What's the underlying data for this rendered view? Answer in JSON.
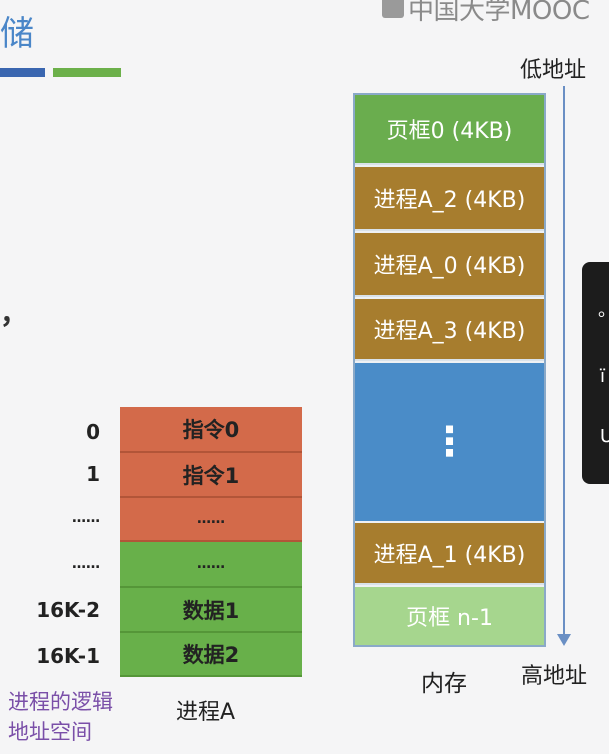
{
  "header": {
    "title_fragment": "储",
    "watermark": "中国大学MOOC",
    "comma": "，"
  },
  "logical_space": {
    "rows": [
      {
        "address": "0",
        "content": "指令0",
        "kind": "instruction"
      },
      {
        "address": "1",
        "content": "指令1",
        "kind": "instruction"
      },
      {
        "address": "……",
        "content": "……",
        "kind": "instruction"
      },
      {
        "address": "……",
        "content": "……",
        "kind": "data"
      },
      {
        "address": "16K-2",
        "content": "数据1",
        "kind": "data"
      },
      {
        "address": "16K-1",
        "content": "数据2",
        "kind": "data"
      }
    ],
    "caption_left_line1": "进程的逻辑",
    "caption_left_line2": "地址空间",
    "caption_right": "进程A"
  },
  "memory": {
    "frames": [
      {
        "label": "页框0 (4KB)",
        "kind": "free-frame"
      },
      {
        "label": "进程A_2 (4KB)",
        "kind": "process-page"
      },
      {
        "label": "进程A_0 (4KB)",
        "kind": "process-page"
      },
      {
        "label": "进程A_3 (4KB)",
        "kind": "process-page"
      },
      {
        "label": "⋮",
        "kind": "other"
      },
      {
        "label": "进程A_1 (4KB)",
        "kind": "process-page"
      },
      {
        "label": "页框 n-1",
        "kind": "last-frame"
      }
    ],
    "caption": "内存",
    "low_address_label": "低地址",
    "high_address_label": "高地址"
  },
  "colors": {
    "instruction": "#d36a4a",
    "data": "#68b04a",
    "free_frame": "#6aad4e",
    "process_page": "#a77d2e",
    "other_region": "#4a8cc8",
    "last_frame": "#a6d68e",
    "title": "#4a86c8"
  },
  "side_panel": {
    "glyphs": [
      "。",
      "ï",
      "U"
    ]
  }
}
